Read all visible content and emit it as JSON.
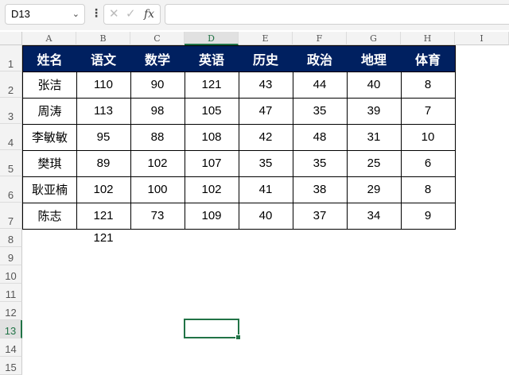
{
  "name_box": {
    "value": "D13"
  },
  "formula_bar": {
    "cancel_icon": "x-icon",
    "enter_icon": "check-icon",
    "fx_label": "fx",
    "value": ""
  },
  "columns": [
    "A",
    "B",
    "C",
    "D",
    "E",
    "F",
    "G",
    "H",
    "I"
  ],
  "rows": [
    "1",
    "2",
    "3",
    "4",
    "5",
    "6",
    "7",
    "8",
    "9",
    "10",
    "11",
    "12",
    "13",
    "14",
    "15"
  ],
  "selected_cell": "D13",
  "colors": {
    "header_fill": "#002060",
    "accent": "#217346"
  },
  "table": {
    "headers": [
      "姓名",
      "语文",
      "数学",
      "英语",
      "历史",
      "政治",
      "地理",
      "体育"
    ],
    "rows": [
      [
        "张洁",
        "110",
        "90",
        "121",
        "43",
        "44",
        "40",
        "8"
      ],
      [
        "周涛",
        "113",
        "98",
        "105",
        "47",
        "35",
        "39",
        "7"
      ],
      [
        "李敏敏",
        "95",
        "88",
        "108",
        "42",
        "48",
        "31",
        "10"
      ],
      [
        "樊琪",
        "89",
        "102",
        "107",
        "35",
        "35",
        "25",
        "6"
      ],
      [
        "耿亚楠",
        "102",
        "100",
        "102",
        "41",
        "38",
        "29",
        "8"
      ],
      [
        "陈志",
        "121",
        "73",
        "109",
        "40",
        "37",
        "34",
        "9"
      ]
    ]
  },
  "extra_cells": [
    {
      "ref": "B8",
      "value": "121"
    }
  ]
}
